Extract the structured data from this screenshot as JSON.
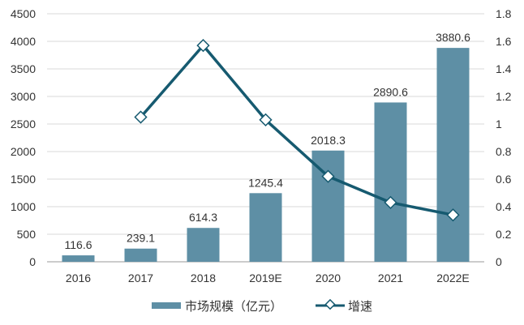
{
  "chart_data": {
    "type": "bar",
    "title": "",
    "categories": [
      "2016",
      "2017",
      "2018",
      "2019E",
      "2020",
      "2021",
      "2022E"
    ],
    "series": [
      {
        "name": "市场规模（亿元）",
        "type": "bar",
        "axis": "left",
        "values": [
          116.6,
          239.1,
          614.3,
          1245.4,
          2018.3,
          2890.6,
          3880.6
        ],
        "labels": [
          "116.6",
          "239.1",
          "614.3",
          "1245.4",
          "2018.3",
          "2890.6",
          "3880.6"
        ],
        "color": "#5e8fa5"
      },
      {
        "name": "增速",
        "type": "line",
        "axis": "right",
        "values": [
          null,
          1.05,
          1.57,
          1.03,
          0.62,
          0.43,
          0.34
        ],
        "color": "#165a70"
      }
    ],
    "y_left": {
      "min": 0,
      "max": 4500,
      "ticks": [
        "0",
        "500",
        "1000",
        "1500",
        "2000",
        "2500",
        "3000",
        "3500",
        "4000",
        "4500"
      ]
    },
    "y_right": {
      "min": 0,
      "max": 1.8,
      "ticks": [
        "0",
        "0.2",
        "0.4",
        "0.6",
        "0.8",
        "1",
        "1.2",
        "1.4",
        "1.6",
        "1.8"
      ]
    },
    "grid": true,
    "legend_position": "bottom"
  }
}
